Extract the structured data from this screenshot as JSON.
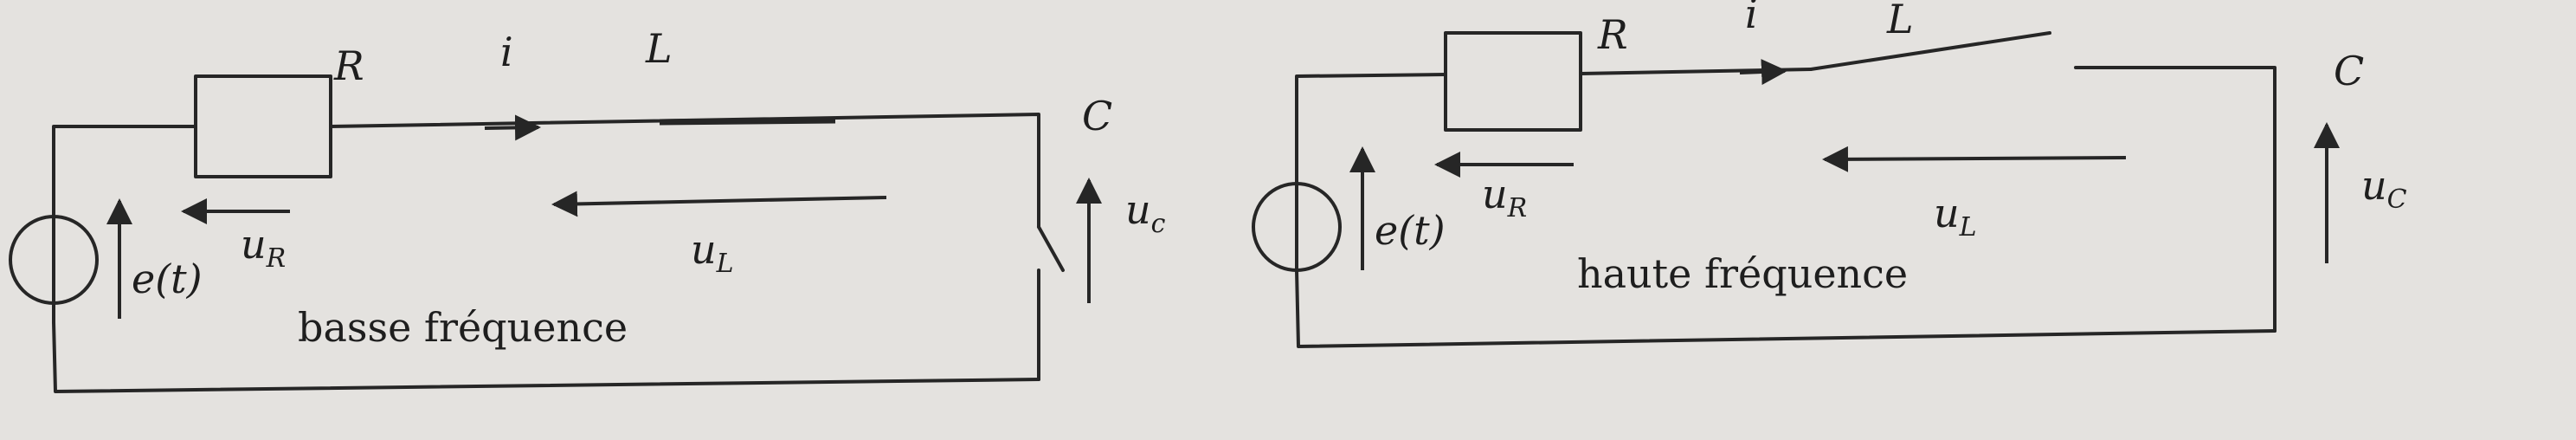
{
  "colors": {
    "paper": "#e4e2df",
    "ink": "#262626"
  },
  "circuits": [
    {
      "id": "low",
      "labels": {
        "R": "R",
        "i": "i",
        "L": "L",
        "C": "C",
        "e": "e(t)",
        "uR_main": "u",
        "uR_sub": "R",
        "uL_main": "u",
        "uL_sub": "L",
        "uc_main": "u",
        "uc_sub": "c",
        "caption": "basse fréquence"
      }
    },
    {
      "id": "high",
      "labels": {
        "R": "R",
        "i": "i",
        "L": "L",
        "C": "C",
        "e": "e(t)",
        "uR_main": "u",
        "uR_sub": "R",
        "uL_main": "u",
        "uL_sub": "L",
        "uc_main": "u",
        "uc_sub": "C",
        "caption": "haute fréquence"
      }
    }
  ]
}
